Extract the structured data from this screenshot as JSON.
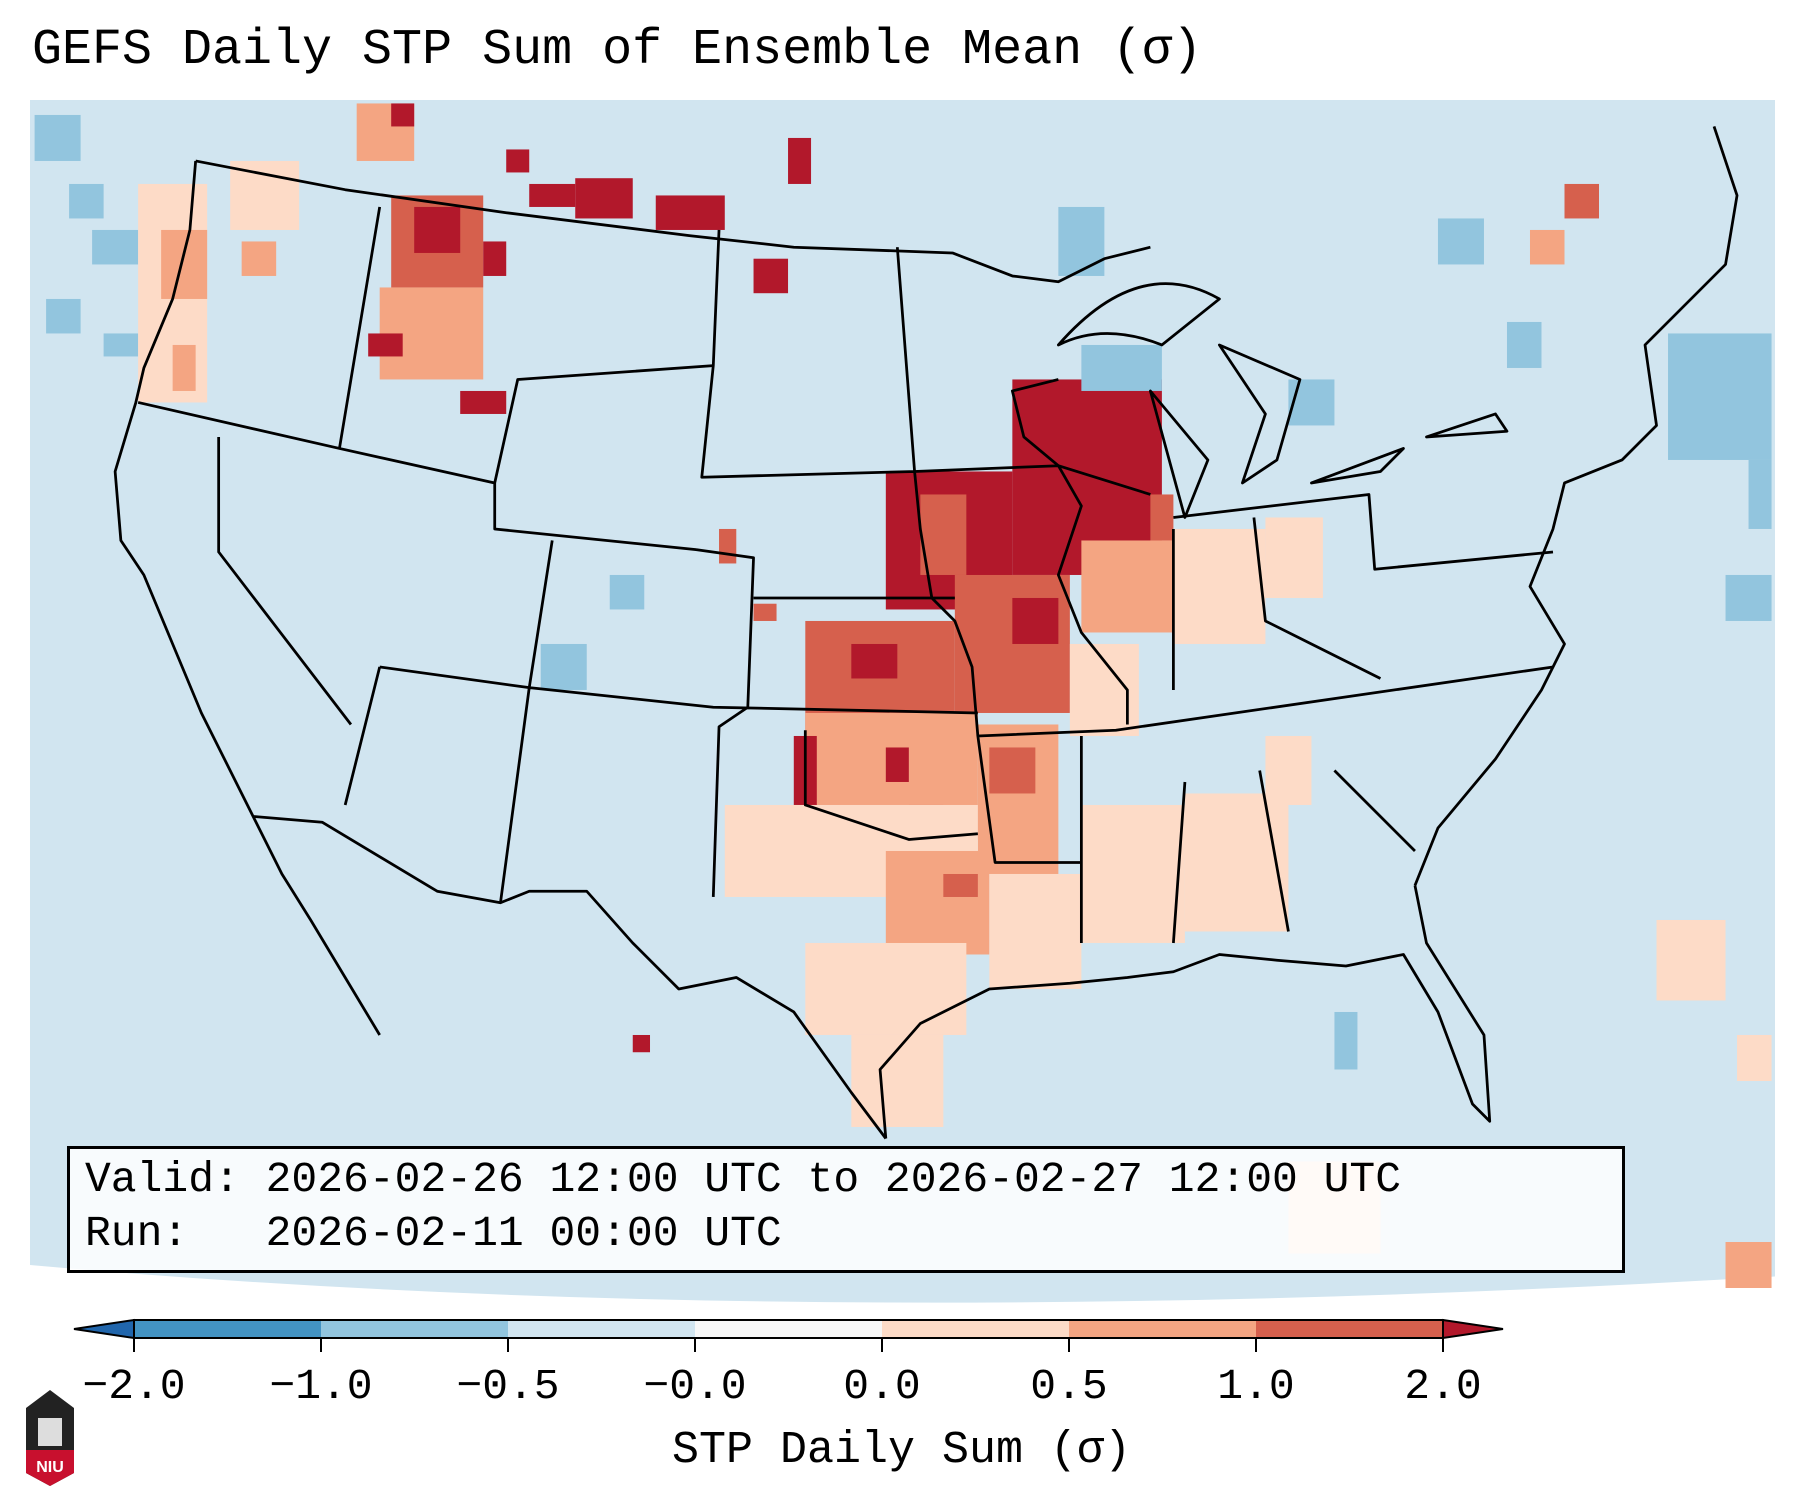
{
  "title": "GEFS Daily STP Sum of Ensemble Mean (σ)",
  "legend": {
    "valid_line": "Valid: 2026-02-26 12:00 UTC to 2026-02-27 12:00 UTC",
    "run_line": "Run:   2026-02-11 00:00 UTC"
  },
  "logo_text": "NIU",
  "chart_data": {
    "type": "heatmap",
    "title": "GEFS Daily STP Sum of Ensemble Mean (σ)",
    "colorbar": {
      "label": "STP Daily Sum (σ)",
      "tick_labels": [
        "−2.0",
        "−1.0",
        "−0.5",
        "−0.0",
        "0.0",
        "0.5",
        "1.0",
        "2.0"
      ],
      "bins": [
        {
          "range": "< -2.0",
          "color": "#2166ac"
        },
        {
          "range": "-2.0 to -1.0",
          "color": "#4393c3"
        },
        {
          "range": "-1.0 to -0.5",
          "color": "#92c5de"
        },
        {
          "range": "-0.5 to -0.0",
          "color": "#d1e5f0"
        },
        {
          "range": "-0.0 to 0.0",
          "color": "#f7f7f7"
        },
        {
          "range": "0.0 to 0.5",
          "color": "#fddbc7"
        },
        {
          "range": "0.5 to 1.0",
          "color": "#f4a582"
        },
        {
          "range": "1.0 to 2.0",
          "color": "#d6604d"
        },
        {
          "range": "> 2.0",
          "color": "#b2182b"
        }
      ],
      "extend": "both"
    },
    "region": "Contiguous United States",
    "features": [
      {
        "area": "Upper Midwest (IA, WI, MN, IL)",
        "value_range": "> 2.0"
      },
      {
        "area": "MO, KS, OK, AR",
        "value_range": "0.5 to 2.0"
      },
      {
        "area": "Pacific Northwest / ID / MT",
        "value_range": "0.0 to 2.0"
      },
      {
        "area": "Lower Mississippi Valley / Gulf Coast",
        "value_range": "0.0 to 0.5"
      },
      {
        "area": "Remaining areas",
        "value_range": "-0.5 to -0.0"
      }
    ]
  }
}
